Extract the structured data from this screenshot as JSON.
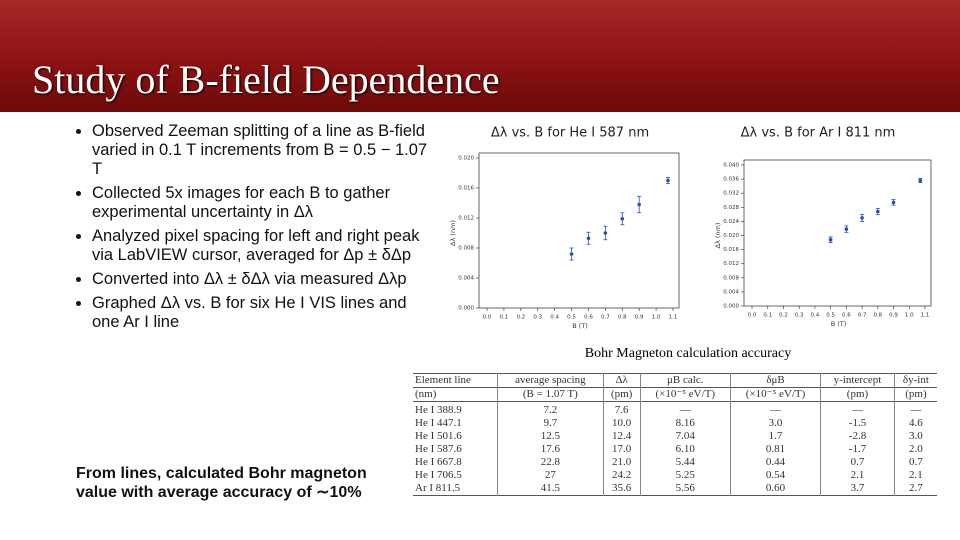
{
  "header": {
    "title": "Study of B-field Dependence"
  },
  "bullets": [
    "Observed Zeeman splitting of a line as B-field varied in 0.1 T increments from B = 0.5 − 1.07 T",
    "Collected 5x images for each B to gather experimental uncertainty in Δλ",
    "Analyzed pixel spacing for left and right peak via LabVIEW cursor, averaged for Δp ± δΔp",
    "Converted into Δλ ± δΔλ via measured Δλp",
    "Graphed Δλ vs. B for six He I VIS lines and one Ar I line"
  ],
  "conclusion": "From lines, calculated Bohr magneton value with average accuracy of ∼10%",
  "chart_data": [
    {
      "type": "scatter",
      "title": "Δλ vs. B for He I 587 nm",
      "x_label": "B (T)",
      "y_label": "Δλ (nm)",
      "color": "#2a4fb0",
      "x": [
        0.5,
        0.6,
        0.7,
        0.8,
        0.9,
        1.07
      ],
      "values": [
        0.0072,
        0.0093,
        0.01,
        0.0119,
        0.0138,
        0.017
      ],
      "errors": [
        0.0008,
        0.0008,
        0.0009,
        0.0008,
        0.0011,
        0.0004
      ],
      "xlim": [
        0,
        1.1
      ],
      "ylim": [
        0,
        0.02
      ],
      "xticks": [
        {
          "value": 0,
          "label": "0.0"
        },
        0.1,
        0.2,
        0.3,
        0.4,
        0.5,
        0.6,
        0.7,
        0.8,
        0.9,
        {
          "value": 1,
          "label": "1.0"
        },
        1.1
      ],
      "yticks": [
        {
          "value": 0,
          "label": "0.000"
        },
        0.004,
        0.008,
        0.012,
        0.016,
        {
          "value": 0.02,
          "label": "0.020"
        }
      ]
    },
    {
      "type": "scatter",
      "title": "Δλ vs. B for Ar I 811 nm",
      "x_label": "B (T)",
      "y_label": "Δλ (nm)",
      "color": "#2a4fb0",
      "x": [
        0.5,
        0.6,
        0.7,
        0.8,
        0.9,
        1.07
      ],
      "values": [
        0.0188,
        0.0218,
        0.025,
        0.0268,
        0.0294,
        0.0356
      ],
      "errors": [
        0.0008,
        0.0009,
        0.001,
        0.0009,
        0.0008,
        0.0006
      ],
      "xlim": [
        0,
        1.1
      ],
      "ylim": [
        0,
        0.04
      ],
      "xticks": [
        {
          "value": 0,
          "label": "0.0"
        },
        0.1,
        0.2,
        0.3,
        0.4,
        0.5,
        0.6,
        0.7,
        0.8,
        0.9,
        {
          "value": 1,
          "label": "1.0"
        },
        1.1
      ],
      "yticks": [
        {
          "value": 0,
          "label": "0.000"
        },
        0.004,
        0.008,
        0.012,
        0.016,
        {
          "value": 0.02,
          "label": "0.020"
        },
        0.024,
        0.028,
        0.032,
        0.036,
        {
          "value": 0.04,
          "label": "0.040"
        }
      ]
    }
  ],
  "table": {
    "caption": "Bohr Magneton calculation accuracy",
    "headers": [
      [
        "Element line",
        "(nm)"
      ],
      [
        "average spacing",
        "(B = 1.07 T)"
      ],
      [
        "Δλ",
        "(pm)"
      ],
      [
        "μB calc.",
        "(×10⁻⁵ eV/T)"
      ],
      [
        "δμB",
        "(×10⁻⁵ eV/T)"
      ],
      [
        "y-intercept",
        "(pm)"
      ],
      [
        "δy-int",
        "(pm)"
      ]
    ],
    "rows": [
      [
        "He I 388.9",
        "7.2",
        "7.6",
        "—",
        "—",
        "—",
        "—"
      ],
      [
        "He I 447.1",
        "9.7",
        "10.0",
        "8.16",
        "3.0",
        "-1.5",
        "4.6"
      ],
      [
        "He I 501.6",
        "12.5",
        "12.4",
        "7.04",
        "1.7",
        "-2.8",
        "3.0"
      ],
      [
        "He I 587.6",
        "17.6",
        "17.0",
        "6.10",
        "0.81",
        "-1.7",
        "2.0"
      ],
      [
        "He I 667.8",
        "22.8",
        "21.0",
        "5.44",
        "0.44",
        "0.7",
        "0.7"
      ],
      [
        "He I 706.5",
        "27",
        "24.2",
        "5.25",
        "0.54",
        "2.1",
        "2.1"
      ],
      [
        "Ar I 811.5",
        "41.5",
        "35.6",
        "5.56",
        "0.60",
        "3.7",
        "2.7"
      ]
    ]
  }
}
